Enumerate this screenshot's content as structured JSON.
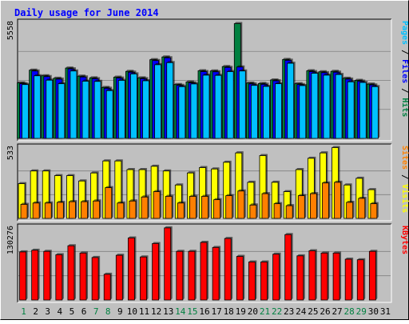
{
  "chart_data": {
    "type": "bar",
    "title": "Daily usage for June 2014",
    "categories": [
      "1",
      "2",
      "3",
      "4",
      "5",
      "6",
      "7",
      "8",
      "9",
      "10",
      "11",
      "12",
      "13",
      "14",
      "15",
      "16",
      "17",
      "18",
      "19",
      "20",
      "21",
      "22",
      "23",
      "24",
      "25",
      "26",
      "27",
      "28",
      "29",
      "30",
      "31"
    ],
    "weekend_days": [
      1,
      7,
      8,
      14,
      15,
      21,
      22,
      28,
      29
    ],
    "panels": [
      {
        "id": "hits-files-pages",
        "max_label": "5558",
        "ylim": [
          0,
          5558
        ],
        "axis_label_parts": [
          {
            "text": "Pages",
            "color": "#00c0ff"
          },
          {
            "text": " / ",
            "color": "#000000"
          },
          {
            "text": "Files",
            "color": "#0000ff"
          },
          {
            "text": " / ",
            "color": "#000000"
          },
          {
            "text": "Hits",
            "color": "#008040"
          }
        ],
        "series": [
          {
            "name": "Hits",
            "color": "#008040",
            "values": [
              2660,
              3270,
              3000,
              2880,
              3370,
              2980,
              2900,
              2440,
              2930,
              3210,
              2900,
              3770,
              3900,
              2580,
              2700,
              3240,
              3230,
              3440,
              5500,
              2650,
              2630,
              2800,
              3780,
              2620,
              3240,
              3190,
              3210,
              2880,
              2780,
              2600,
              null
            ]
          },
          {
            "name": "Files",
            "color": "#0000ff",
            "values": [
              2620,
              3230,
              2960,
              2840,
              3330,
              2940,
              2860,
              2400,
              2890,
              3170,
              2860,
              3730,
              3860,
              2540,
              2660,
              3200,
              3190,
              3400,
              3420,
              2610,
              2590,
              2760,
              3740,
              2580,
              3200,
              3150,
              3170,
              2840,
              2740,
              2560,
              null
            ]
          },
          {
            "name": "Pages",
            "color": "#00c0ff",
            "values": [
              2580,
              3000,
              2790,
              2620,
              3230,
              2740,
              2730,
              2290,
              2780,
              3090,
              2760,
              3530,
              3630,
              2480,
              2610,
              3030,
              3020,
              3200,
              3230,
              2540,
              2490,
              2620,
              3600,
              2530,
              3120,
              3030,
              3060,
              2710,
              2680,
              2480,
              null
            ]
          }
        ]
      },
      {
        "id": "visits-sites",
        "max_label": "533",
        "ylim": [
          0,
          533
        ],
        "axis_label_parts": [
          {
            "text": "Sites",
            "color": "#ff8000"
          },
          {
            "text": " / ",
            "color": "#000000"
          },
          {
            "text": "Visits",
            "color": "#ffff00"
          }
        ],
        "series": [
          {
            "name": "Visits",
            "color": "#ffff00",
            "values": [
              260,
              355,
              355,
              320,
              320,
              280,
              340,
              430,
              430,
              365,
              365,
              390,
              355,
              250,
              340,
              380,
              370,
              420,
              490,
              270,
              470,
              270,
              200,
              365,
              450,
              490,
              530,
              250,
              300,
              215,
              null
            ]
          },
          {
            "name": "Sites",
            "color": "#ff8000",
            "values": [
              105,
              115,
              115,
              120,
              125,
              125,
              130,
              230,
              115,
              130,
              160,
              200,
              165,
              115,
              165,
              165,
              140,
              170,
              205,
              100,
              185,
              110,
              95,
              170,
              185,
              265,
              270,
              120,
              150,
              110,
              null
            ]
          }
        ]
      },
      {
        "id": "kbytes",
        "max_label": "130276",
        "ylim": [
          0,
          130276
        ],
        "axis_label_parts": [
          {
            "text": "KBytes",
            "color": "#ff0000"
          }
        ],
        "series": [
          {
            "name": "KBytes",
            "color": "#ff0000",
            "values": [
              86000,
              89000,
              87000,
              81000,
              97000,
              84000,
              76000,
              46000,
              80000,
              111000,
              77000,
              101000,
              129000,
              87000,
              87000,
              103000,
              94000,
              110000,
              78000,
              68000,
              68000,
              82000,
              117000,
              79000,
              88000,
              84000,
              84000,
              73000,
              72000,
              87000,
              null
            ]
          }
        ]
      }
    ]
  }
}
